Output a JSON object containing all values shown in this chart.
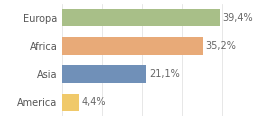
{
  "categories": [
    "America",
    "Asia",
    "Africa",
    "Europa"
  ],
  "values": [
    4.4,
    21.1,
    35.2,
    39.4
  ],
  "bar_colors": [
    "#f0c96a",
    "#7090b8",
    "#e8aa78",
    "#a8bf88"
  ],
  "labels": [
    "4,4%",
    "21,1%",
    "35,2%",
    "39,4%"
  ],
  "xlim": [
    0,
    46
  ],
  "background_color": "#ffffff",
  "bar_height": 0.62,
  "label_fontsize": 7.0,
  "tick_fontsize": 7.0
}
